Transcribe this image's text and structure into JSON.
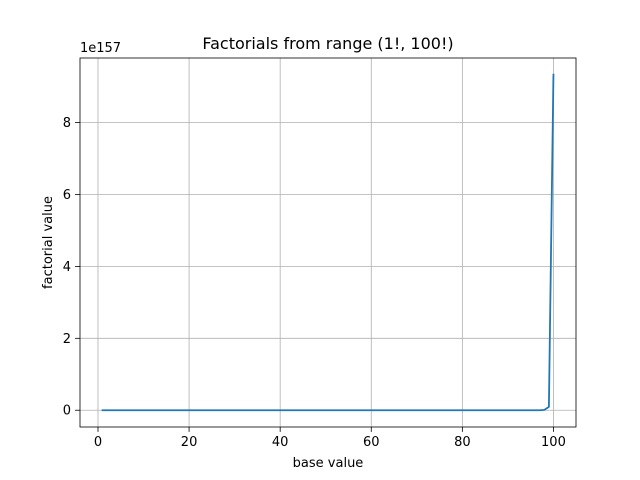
{
  "chart_data": {
    "type": "line",
    "title": "Factorials from range (1!, 100!)",
    "xlabel": "base value",
    "ylabel": "factorial value",
    "y_scale_label": "1e157",
    "xlim": [
      -3.95,
      104.95
    ],
    "ylim": [
      -0.4665,
      9.7965
    ],
    "x_ticks": [
      0,
      20,
      40,
      60,
      80,
      100
    ],
    "y_ticks": [
      0,
      2,
      4,
      6,
      8
    ],
    "x_tick_labels": [
      "0",
      "20",
      "40",
      "60",
      "80",
      "100"
    ],
    "y_tick_labels": [
      "0",
      "2",
      "4",
      "6",
      "8"
    ],
    "grid": true,
    "series": [
      {
        "color": "#1f77b4",
        "x": [
          1,
          96,
          97,
          98,
          99,
          100
        ],
        "y": [
          0,
          1e-06,
          9.619e-05,
          0.009427,
          0.09333,
          9.333
        ]
      }
    ]
  }
}
